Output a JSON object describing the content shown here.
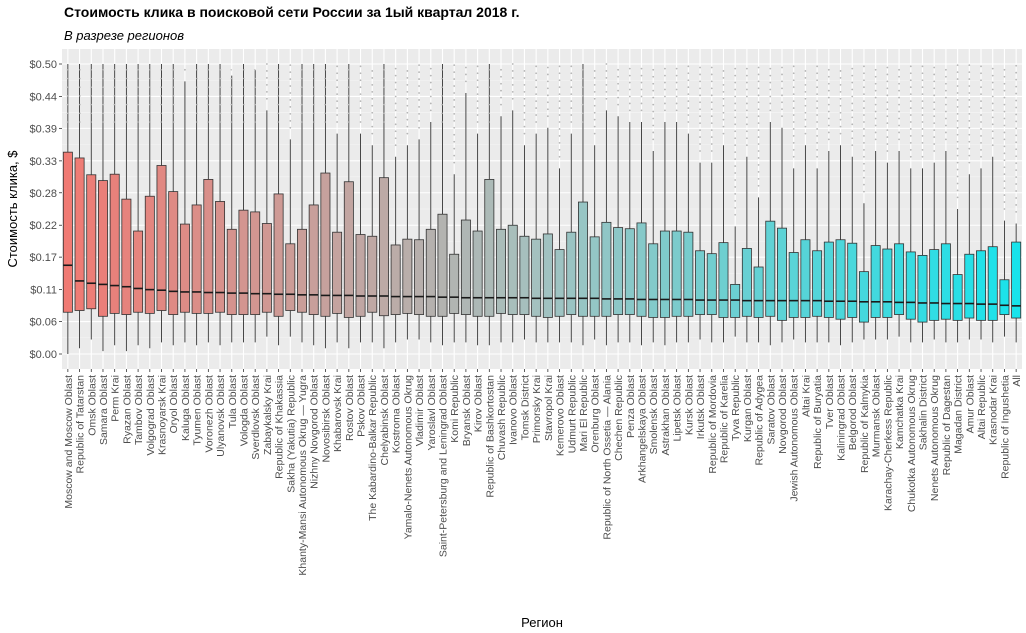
{
  "chart_data": {
    "type": "boxplot",
    "title": "Стоимость клика в поисковой сети России за 1ый квартал 2018 г.",
    "subtitle": "В разрезе регионов",
    "xlabel": "Регион",
    "ylabel": "Стоимость клика, $",
    "ylim": [
      0,
      0.5
    ],
    "yticks": [
      "$0.00",
      "$0.06",
      "$0.11",
      "$0.17",
      "$0.22",
      "$0.28",
      "$0.33",
      "$0.39",
      "$0.44",
      "$0.50"
    ],
    "ytick_values": [
      0,
      0.056,
      0.111,
      0.167,
      0.222,
      0.278,
      0.333,
      0.389,
      0.444,
      0.5
    ],
    "grid": true,
    "fill_gradient": [
      "#f07a73",
      "#a3c2c0",
      "#19e3eb"
    ],
    "categories": [
      "Moscow and Moscow Oblast",
      "Republic of Tatarstan",
      "Omsk Oblast",
      "Samara Oblast",
      "Perm Krai",
      "Ryazan Oblast",
      "Tambov Oblast",
      "Volgograd Oblast",
      "Krasnoyarsk Krai",
      "Oryol Oblast",
      "Kaluga Oblast",
      "Tyumen Oblast",
      "Voronezh Oblast",
      "Ulyanovsk Oblast",
      "Tula Oblast",
      "Vologda Oblast",
      "Sverdlovsk Oblast",
      "Zabaykalsky Krai",
      "Republic of Khakassia",
      "Sakha (Yakutia) Republic",
      "Khanty-Mansi Autonomous Okrug — Yugra",
      "Nizhny Novgorod Oblast",
      "Novosibirsk Oblast",
      "Khabarovsk Krai",
      "Rostov Oblast",
      "Pskov Oblast",
      "The Kabardino-Balkar Republic",
      "Chelyabinsk Oblast",
      "Kostroma Oblast",
      "Yamalo-Nenets Autonomous Okrug",
      "Vladimir Oblast",
      "Yaroslavl Oblast",
      "Saint-Petersburg and Leningrad Oblast",
      "Komi Republic",
      "Bryansk Oblast",
      "Kirov Oblast",
      "Republic of Bashkortostan",
      "Chuvash Republic",
      "Ivanovo Oblast",
      "Tomsk District",
      "Primorsky Krai",
      "Stavropol Krai",
      "Kemerovo Oblast",
      "Udmurt Republic",
      "Mari El Republic",
      "Orenburg Oblast",
      "Republic of North Ossetia — Alania",
      "Chechen Republic",
      "Penza Oblast",
      "Arkhangelskaya Oblast",
      "Smolensk Oblast",
      "Astrakhan Oblast",
      "Lipetsk Oblast",
      "Kursk Oblast",
      "Irkutsk Oblast",
      "Republic of Mordovia",
      "Republic of Karelia",
      "Tyva Republic",
      "Kurgan Oblast",
      "Republic of Adygea",
      "Saratov Oblast",
      "Novgorod Oblast",
      "Jewish Autonomous Oblast",
      "Altai Krai",
      "Republic of Buryatia",
      "Tver Oblast",
      "Kaliningrad Oblast",
      "Belgorod Oblast",
      "Republic of Kalmykia",
      "Murmansk Oblast",
      "Karachay-Cherkess Republic",
      "Kamchatka Krai",
      "Chukotka Autonomous Okrug",
      "Sakhalin District",
      "Nenets Autonomous Okrug",
      "Republic of Dagestan",
      "Magadan District",
      "Amur Oblast",
      "Altai Republic",
      "Krasnodar Krai",
      "Republic of Ingushetia",
      "All"
    ],
    "series": [
      {
        "stats": [
          [
            0.0,
            0.072,
            0.153,
            0.348,
            0.5
          ],
          [
            0.01,
            0.075,
            0.126,
            0.338,
            0.5
          ],
          [
            0.025,
            0.078,
            0.122,
            0.309,
            0.5
          ],
          [
            0.005,
            0.065,
            0.12,
            0.299,
            0.5
          ],
          [
            0.015,
            0.07,
            0.118,
            0.31,
            0.5
          ],
          [
            0.005,
            0.068,
            0.116,
            0.267,
            0.5
          ],
          [
            0.015,
            0.072,
            0.113,
            0.212,
            0.5
          ],
          [
            0.01,
            0.07,
            0.111,
            0.272,
            0.5
          ],
          [
            0.02,
            0.075,
            0.11,
            0.325,
            0.5
          ],
          [
            0.015,
            0.068,
            0.108,
            0.28,
            0.5
          ],
          [
            0.02,
            0.072,
            0.107,
            0.224,
            0.47
          ],
          [
            0.015,
            0.07,
            0.107,
            0.257,
            0.5
          ],
          [
            0.02,
            0.07,
            0.106,
            0.301,
            0.5
          ],
          [
            0.015,
            0.072,
            0.106,
            0.263,
            0.5
          ],
          [
            0.02,
            0.068,
            0.105,
            0.215,
            0.48
          ],
          [
            0.02,
            0.068,
            0.105,
            0.248,
            0.5
          ],
          [
            0.02,
            0.068,
            0.104,
            0.245,
            0.49
          ],
          [
            0.03,
            0.072,
            0.104,
            0.225,
            0.42
          ],
          [
            0.015,
            0.065,
            0.103,
            0.276,
            0.5
          ],
          [
            0.03,
            0.075,
            0.103,
            0.19,
            0.37
          ],
          [
            0.02,
            0.072,
            0.102,
            0.215,
            0.5
          ],
          [
            0.015,
            0.068,
            0.102,
            0.257,
            0.5
          ],
          [
            0.01,
            0.065,
            0.101,
            0.312,
            0.5
          ],
          [
            0.02,
            0.07,
            0.101,
            0.21,
            0.38
          ],
          [
            0.01,
            0.063,
            0.101,
            0.297,
            0.5
          ],
          [
            0.02,
            0.065,
            0.1,
            0.206,
            0.38
          ],
          [
            0.02,
            0.072,
            0.1,
            0.203,
            0.36
          ],
          [
            0.01,
            0.066,
            0.1,
            0.304,
            0.5
          ],
          [
            0.02,
            0.068,
            0.099,
            0.188,
            0.34
          ],
          [
            0.025,
            0.07,
            0.099,
            0.198,
            0.36
          ],
          [
            0.025,
            0.068,
            0.099,
            0.197,
            0.37
          ],
          [
            0.02,
            0.065,
            0.099,
            0.215,
            0.4
          ],
          [
            0.015,
            0.065,
            0.098,
            0.241,
            0.5
          ],
          [
            0.02,
            0.07,
            0.098,
            0.172,
            0.31
          ],
          [
            0.02,
            0.068,
            0.097,
            0.231,
            0.45
          ],
          [
            0.015,
            0.065,
            0.097,
            0.212,
            0.38
          ],
          [
            0.015,
            0.065,
            0.097,
            0.301,
            0.5
          ],
          [
            0.02,
            0.07,
            0.097,
            0.215,
            0.41
          ],
          [
            0.02,
            0.068,
            0.097,
            0.222,
            0.42
          ],
          [
            0.025,
            0.068,
            0.097,
            0.203,
            0.36
          ],
          [
            0.02,
            0.065,
            0.096,
            0.198,
            0.38
          ],
          [
            0.02,
            0.063,
            0.096,
            0.207,
            0.39
          ],
          [
            0.02,
            0.065,
            0.096,
            0.18,
            0.32
          ],
          [
            0.02,
            0.068,
            0.096,
            0.21,
            0.38
          ],
          [
            0.015,
            0.065,
            0.096,
            0.262,
            0.5
          ],
          [
            0.025,
            0.065,
            0.096,
            0.202,
            0.36
          ],
          [
            0.015,
            0.065,
            0.095,
            0.227,
            0.42
          ],
          [
            0.02,
            0.068,
            0.095,
            0.218,
            0.41
          ],
          [
            0.02,
            0.068,
            0.095,
            0.216,
            0.4
          ],
          [
            0.015,
            0.065,
            0.094,
            0.226,
            0.4
          ],
          [
            0.02,
            0.063,
            0.094,
            0.19,
            0.35
          ],
          [
            0.015,
            0.063,
            0.094,
            0.212,
            0.4
          ],
          [
            0.02,
            0.065,
            0.094,
            0.212,
            0.4
          ],
          [
            0.02,
            0.065,
            0.094,
            0.21,
            0.38
          ],
          [
            0.025,
            0.068,
            0.093,
            0.178,
            0.33
          ],
          [
            0.02,
            0.068,
            0.093,
            0.173,
            0.33
          ],
          [
            0.02,
            0.063,
            0.093,
            0.192,
            0.36
          ],
          [
            0.03,
            0.063,
            0.093,
            0.12,
            0.22
          ],
          [
            0.02,
            0.065,
            0.092,
            0.182,
            0.34
          ],
          [
            0.02,
            0.063,
            0.092,
            0.15,
            0.27
          ],
          [
            0.015,
            0.065,
            0.092,
            0.229,
            0.4
          ],
          [
            0.02,
            0.058,
            0.092,
            0.217,
            0.39
          ],
          [
            0.025,
            0.063,
            0.092,
            0.175,
            0.32
          ],
          [
            0.02,
            0.063,
            0.092,
            0.197,
            0.36
          ],
          [
            0.02,
            0.065,
            0.092,
            0.178,
            0.32
          ],
          [
            0.02,
            0.063,
            0.091,
            0.193,
            0.35
          ],
          [
            0.015,
            0.06,
            0.091,
            0.197,
            0.36
          ],
          [
            0.02,
            0.063,
            0.091,
            0.191,
            0.34
          ],
          [
            0.025,
            0.055,
            0.09,
            0.142,
            0.26
          ],
          [
            0.025,
            0.063,
            0.09,
            0.187,
            0.35
          ],
          [
            0.025,
            0.063,
            0.09,
            0.181,
            0.33
          ],
          [
            0.03,
            0.068,
            0.089,
            0.19,
            0.35
          ],
          [
            0.02,
            0.06,
            0.089,
            0.176,
            0.32
          ],
          [
            0.02,
            0.055,
            0.088,
            0.17,
            0.32
          ],
          [
            0.025,
            0.058,
            0.088,
            0.18,
            0.33
          ],
          [
            0.02,
            0.06,
            0.087,
            0.19,
            0.35
          ],
          [
            0.02,
            0.058,
            0.087,
            0.137,
            0.25
          ],
          [
            0.025,
            0.062,
            0.087,
            0.172,
            0.31
          ],
          [
            0.025,
            0.058,
            0.086,
            0.178,
            0.32
          ],
          [
            0.02,
            0.058,
            0.086,
            0.185,
            0.34
          ],
          [
            0.03,
            0.068,
            0.084,
            0.128,
            0.23
          ],
          [
            0.02,
            0.062,
            0.083,
            0.193,
            0.225
          ]
        ],
        "outlier_tops": [
          0.5,
          0.5,
          0.5,
          0.5,
          0.5,
          0.5,
          0.5,
          0.5,
          0.5,
          0.5,
          0.5,
          0.5,
          0.5,
          0.5,
          0.5,
          0.5,
          0.5,
          0.5,
          0.5,
          0.5,
          0.5,
          0.5,
          0.5,
          0.5,
          0.5,
          0.5,
          0.5,
          0.5,
          0.5,
          0.5,
          0.5,
          0.5,
          0.5,
          0.5,
          0.5,
          0.5,
          0.5,
          0.5,
          0.5,
          0.5,
          0.5,
          0.5,
          0.5,
          0.5,
          0.5,
          0.5,
          0.5,
          0.5,
          0.5,
          0.5,
          0.5,
          0.5,
          0.5,
          0.5,
          0.5,
          0.5,
          0.5,
          0.5,
          0.5,
          0.5,
          0.5,
          0.5,
          0.5,
          0.5,
          0.5,
          0.5,
          0.5,
          0.5,
          0.5,
          0.5,
          0.5,
          0.5,
          0.5,
          0.5,
          0.5,
          0.5,
          0.5,
          0.5,
          0.5,
          0.5,
          0.5,
          0.5
        ]
      }
    ]
  }
}
